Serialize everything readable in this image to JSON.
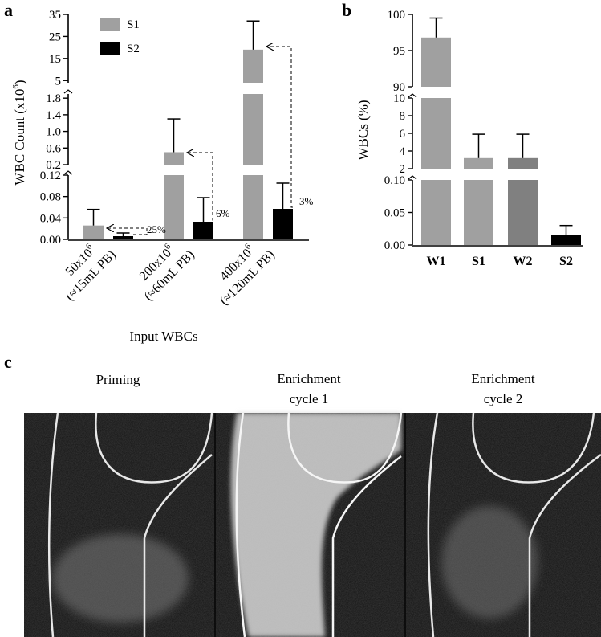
{
  "panels": {
    "a": "a",
    "b": "b",
    "c": "c"
  },
  "chart_data": [
    {
      "type": "bar",
      "panel": "a",
      "ylabel_pre": "WBC Count (x10",
      "ylabel_exp": "6",
      "ylabel_post": ")",
      "xlabel": "Input WBCs",
      "categories": [
        {
          "line1": "50x10",
          "exp": "6",
          "line2": "(≈15mL PB)"
        },
        {
          "line1": "200x10",
          "exp": "6",
          "line2": "(≈60mL PB)"
        },
        {
          "line1": "400x10",
          "exp": "6",
          "line2": "(≈120mL PB)"
        }
      ],
      "series": [
        {
          "name": "S1",
          "values": [
            0.026,
            0.5,
            19
          ],
          "errors": [
            0.03,
            0.8,
            13
          ],
          "color": "#a0a0a0"
        },
        {
          "name": "S2",
          "values": [
            0.006,
            0.033,
            0.057
          ],
          "errors": [
            0.006,
            0.045,
            0.048
          ],
          "color": "#000000"
        }
      ],
      "axis_segments": [
        {
          "range": [
            0,
            0.12
          ],
          "ticks": [
            "0.00",
            "0.04",
            "0.08",
            "0.12"
          ]
        },
        {
          "range": [
            0.2,
            1.9
          ],
          "ticks": [
            "0.2",
            "0.6",
            "1.0",
            "1.4",
            "1.8"
          ]
        },
        {
          "range": [
            4,
            35
          ],
          "ticks": [
            "5",
            "15",
            "25",
            "35"
          ]
        }
      ],
      "annotations": [
        "25%",
        "6%",
        "3%"
      ],
      "legend": {
        "position": "top-left"
      }
    },
    {
      "type": "bar",
      "panel": "b",
      "ylabel": "WBCs (%)",
      "categories": [
        "W1",
        "S1",
        "W2",
        "S2"
      ],
      "values": [
        96.8,
        3.2,
        3.2,
        0.016
      ],
      "errors": [
        2.7,
        2.7,
        2.7,
        0.014
      ],
      "colors": [
        "#a0a0a0",
        "#a0a0a0",
        "#808080",
        "#000000"
      ],
      "axis_segments": [
        {
          "range": [
            0,
            0.1
          ],
          "ticks": [
            "0.00",
            "0.05",
            "0.10"
          ]
        },
        {
          "range": [
            2,
            10
          ],
          "ticks": [
            "2",
            "4",
            "6",
            "8",
            "10"
          ]
        },
        {
          "range": [
            90,
            100
          ],
          "ticks": [
            "90",
            "95",
            "100"
          ]
        }
      ]
    }
  ],
  "micrographs": [
    {
      "title_line1": "Priming",
      "title_line2": ""
    },
    {
      "title_line1": "Enrichment",
      "title_line2": "cycle  1"
    },
    {
      "title_line1": "Enrichment",
      "title_line2": "cycle  2"
    }
  ]
}
